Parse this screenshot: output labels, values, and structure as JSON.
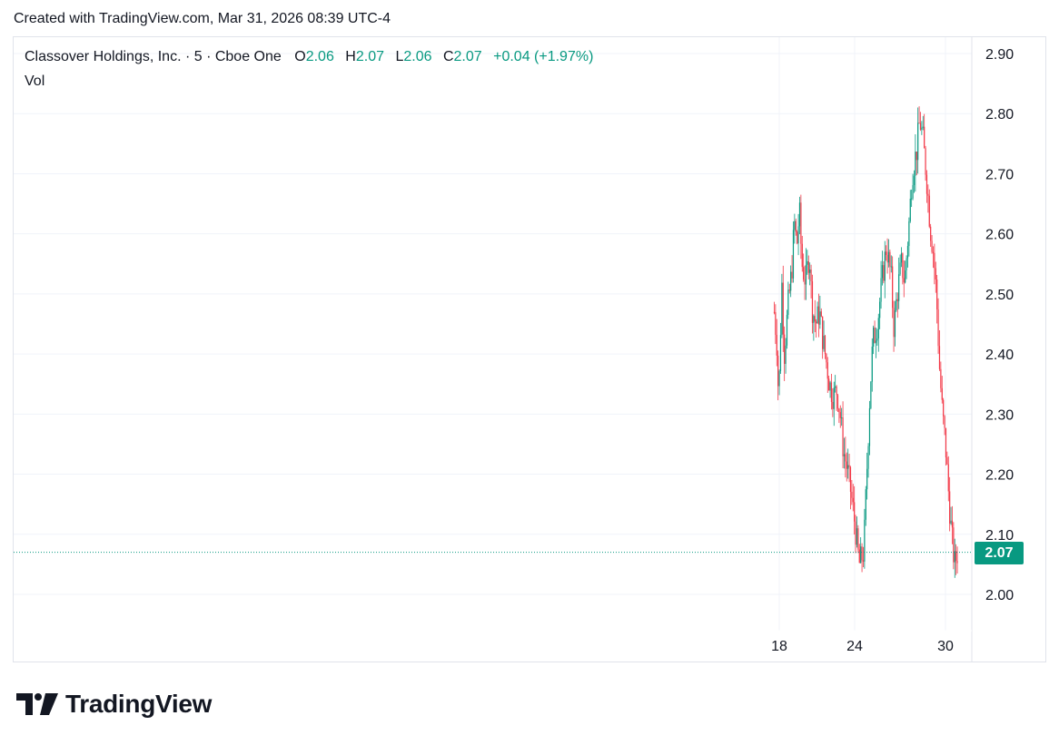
{
  "header": {
    "created": "Created with TradingView.com, Mar 31, 2026 08:39 UTC-4"
  },
  "legend": {
    "symbol": "Classover Holdings, Inc. · 5 · Cboe One",
    "o_label": "O",
    "o_value": "2.06",
    "h_label": "H",
    "h_value": "2.07",
    "l_label": "L",
    "l_value": "2.06",
    "c_label": "C",
    "c_value": "2.07",
    "change": "+0.04 (+1.97%)",
    "vol_label": "Vol"
  },
  "price_tag": "2.07",
  "brand": {
    "name": "TradingView"
  },
  "colors": {
    "up": "#089981",
    "down": "#f23645",
    "grid": "#f0f3fa",
    "text": "#131722"
  },
  "chart_data": {
    "type": "candlestick",
    "interval": "5",
    "exchange": "Cboe One",
    "y_ticks": [
      "2.90",
      "2.80",
      "2.70",
      "2.60",
      "2.50",
      "2.40",
      "2.30",
      "2.20",
      "2.10",
      "2.00"
    ],
    "x_ticks": [
      "18",
      "24",
      "30"
    ],
    "ylim": [
      1.94,
      2.92
    ],
    "last_price": 2.07,
    "grid": true,
    "path": [
      {
        "day": 17.6,
        "price": 2.47
      },
      {
        "day": 17.8,
        "price": 2.42
      },
      {
        "day": 17.95,
        "price": 2.32
      },
      {
        "day": 18.2,
        "price": 2.52
      },
      {
        "day": 18.4,
        "price": 2.4
      },
      {
        "day": 18.7,
        "price": 2.48
      },
      {
        "day": 19.0,
        "price": 2.54
      },
      {
        "day": 19.2,
        "price": 2.62
      },
      {
        "day": 19.4,
        "price": 2.58
      },
      {
        "day": 19.6,
        "price": 2.64
      },
      {
        "day": 19.8,
        "price": 2.55
      },
      {
        "day": 20.1,
        "price": 2.52
      },
      {
        "day": 20.4,
        "price": 2.57
      },
      {
        "day": 20.6,
        "price": 2.48
      },
      {
        "day": 20.9,
        "price": 2.45
      },
      {
        "day": 21.2,
        "price": 2.47
      },
      {
        "day": 21.5,
        "price": 2.42
      },
      {
        "day": 21.8,
        "price": 2.38
      },
      {
        "day": 22.0,
        "price": 2.35
      },
      {
        "day": 22.3,
        "price": 2.33
      },
      {
        "day": 22.6,
        "price": 2.34
      },
      {
        "day": 22.9,
        "price": 2.29
      },
      {
        "day": 23.1,
        "price": 2.24
      },
      {
        "day": 23.4,
        "price": 2.21
      },
      {
        "day": 23.7,
        "price": 2.17
      },
      {
        "day": 24.0,
        "price": 2.12
      },
      {
        "day": 24.3,
        "price": 2.05
      },
      {
        "day": 24.6,
        "price": 2.07
      },
      {
        "day": 24.8,
        "price": 2.2
      },
      {
        "day": 25.0,
        "price": 2.33
      },
      {
        "day": 25.2,
        "price": 2.42
      },
      {
        "day": 25.5,
        "price": 2.45
      },
      {
        "day": 25.8,
        "price": 2.52
      },
      {
        "day": 26.1,
        "price": 2.58
      },
      {
        "day": 26.4,
        "price": 2.53
      },
      {
        "day": 26.6,
        "price": 2.44
      },
      {
        "day": 26.8,
        "price": 2.5
      },
      {
        "day": 27.1,
        "price": 2.55
      },
      {
        "day": 27.3,
        "price": 2.52
      },
      {
        "day": 27.6,
        "price": 2.62
      },
      {
        "day": 27.8,
        "price": 2.7
      },
      {
        "day": 28.1,
        "price": 2.74
      },
      {
        "day": 28.3,
        "price": 2.79
      },
      {
        "day": 28.5,
        "price": 2.76
      },
      {
        "day": 28.8,
        "price": 2.68
      },
      {
        "day": 29.0,
        "price": 2.61
      },
      {
        "day": 29.2,
        "price": 2.57
      },
      {
        "day": 29.4,
        "price": 2.5
      },
      {
        "day": 29.6,
        "price": 2.38
      },
      {
        "day": 29.8,
        "price": 2.3
      },
      {
        "day": 30.0,
        "price": 2.25
      },
      {
        "day": 30.2,
        "price": 2.17
      },
      {
        "day": 30.4,
        "price": 2.1
      },
      {
        "day": 30.6,
        "price": 2.05
      },
      {
        "day": 30.8,
        "price": 2.07
      }
    ]
  }
}
